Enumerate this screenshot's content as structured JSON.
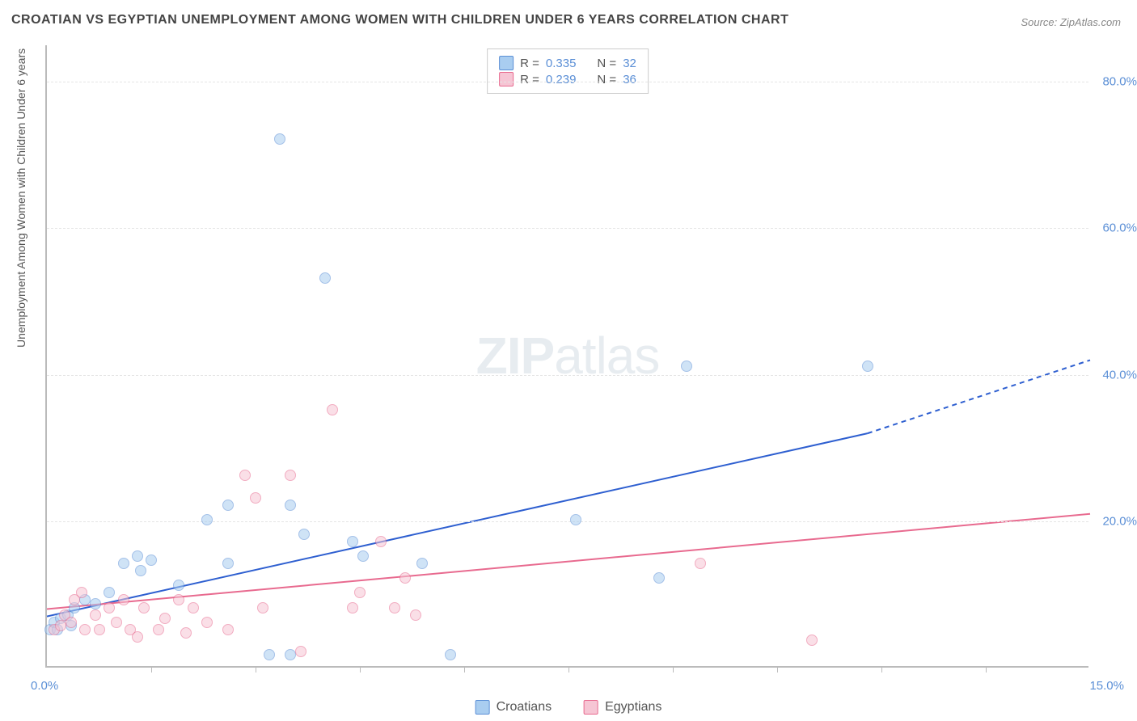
{
  "title": "CROATIAN VS EGYPTIAN UNEMPLOYMENT AMONG WOMEN WITH CHILDREN UNDER 6 YEARS CORRELATION CHART",
  "source": "Source: ZipAtlas.com",
  "ylabel": "Unemployment Among Women with Children Under 6 years",
  "watermark_bold": "ZIP",
  "watermark_thin": "atlas",
  "chart": {
    "type": "scatter",
    "xlim": [
      0,
      15
    ],
    "ylim": [
      0,
      85
    ],
    "x_start_label": "0.0%",
    "x_end_label": "15.0%",
    "y_grid": [
      20,
      40,
      60,
      80
    ],
    "y_grid_labels": [
      "20.0%",
      "40.0%",
      "60.0%",
      "80.0%"
    ],
    "x_ticks": [
      1.5,
      3.0,
      4.5,
      6.0,
      7.5,
      9.0,
      10.5,
      12.0,
      13.5
    ],
    "background_color": "#ffffff",
    "grid_color": "#e5e5e5",
    "axis_color": "#bbbbbb",
    "label_color": "#5b8fd6",
    "point_radius": 7,
    "point_opacity": 0.55,
    "series": [
      {
        "name": "Croatians",
        "fill": "#a9cdf0",
        "stroke": "#5b8fd6",
        "R": 0.335,
        "N": 32,
        "trend": {
          "x1": 0,
          "y1": 7,
          "x2": 11.8,
          "y2": 32,
          "color": "#2e5fd0",
          "width": 2,
          "dash_extension_to_x": 15,
          "dash_extension_y": 42
        },
        "points": [
          [
            0.05,
            5
          ],
          [
            0.1,
            6
          ],
          [
            0.15,
            5
          ],
          [
            0.2,
            6.5
          ],
          [
            0.3,
            7
          ],
          [
            0.35,
            5.5
          ],
          [
            0.4,
            8
          ],
          [
            0.55,
            9
          ],
          [
            0.7,
            8.5
          ],
          [
            0.9,
            10
          ],
          [
            1.1,
            14
          ],
          [
            1.3,
            15
          ],
          [
            1.35,
            13
          ],
          [
            1.5,
            14.5
          ],
          [
            1.9,
            11
          ],
          [
            2.3,
            20
          ],
          [
            2.6,
            22
          ],
          [
            2.6,
            14
          ],
          [
            3.2,
            1.5
          ],
          [
            3.35,
            72
          ],
          [
            3.5,
            22
          ],
          [
            3.5,
            1.5
          ],
          [
            3.7,
            18
          ],
          [
            4.0,
            53
          ],
          [
            4.4,
            17
          ],
          [
            4.55,
            15
          ],
          [
            5.4,
            14
          ],
          [
            5.8,
            1.5
          ],
          [
            7.6,
            20
          ],
          [
            8.8,
            12
          ],
          [
            9.2,
            41
          ],
          [
            11.8,
            41
          ]
        ]
      },
      {
        "name": "Egyptians",
        "fill": "#f6c5d4",
        "stroke": "#e86a8f",
        "R": 0.239,
        "N": 36,
        "trend": {
          "x1": 0,
          "y1": 8,
          "x2": 15,
          "y2": 21,
          "color": "#e86a8f",
          "width": 2
        },
        "points": [
          [
            0.1,
            5
          ],
          [
            0.2,
            5.5
          ],
          [
            0.25,
            7
          ],
          [
            0.35,
            6
          ],
          [
            0.4,
            9
          ],
          [
            0.5,
            10
          ],
          [
            0.55,
            5
          ],
          [
            0.7,
            7
          ],
          [
            0.75,
            5
          ],
          [
            0.9,
            8
          ],
          [
            1.0,
            6
          ],
          [
            1.1,
            9
          ],
          [
            1.2,
            5
          ],
          [
            1.3,
            4
          ],
          [
            1.4,
            8
          ],
          [
            1.6,
            5
          ],
          [
            1.7,
            6.5
          ],
          [
            1.9,
            9
          ],
          [
            2.0,
            4.5
          ],
          [
            2.1,
            8
          ],
          [
            2.3,
            6
          ],
          [
            2.6,
            5
          ],
          [
            2.85,
            26
          ],
          [
            3.0,
            23
          ],
          [
            3.1,
            8
          ],
          [
            3.5,
            26
          ],
          [
            3.65,
            2
          ],
          [
            4.1,
            35
          ],
          [
            4.4,
            8
          ],
          [
            4.5,
            10
          ],
          [
            4.8,
            17
          ],
          [
            5.0,
            8
          ],
          [
            5.15,
            12
          ],
          [
            5.3,
            7
          ],
          [
            9.4,
            14
          ],
          [
            11.0,
            3.5
          ]
        ]
      }
    ]
  },
  "legend_top_format": {
    "r_label": "R =",
    "n_label": "N ="
  },
  "legend_bottom": [
    "Croatians",
    "Egyptians"
  ]
}
